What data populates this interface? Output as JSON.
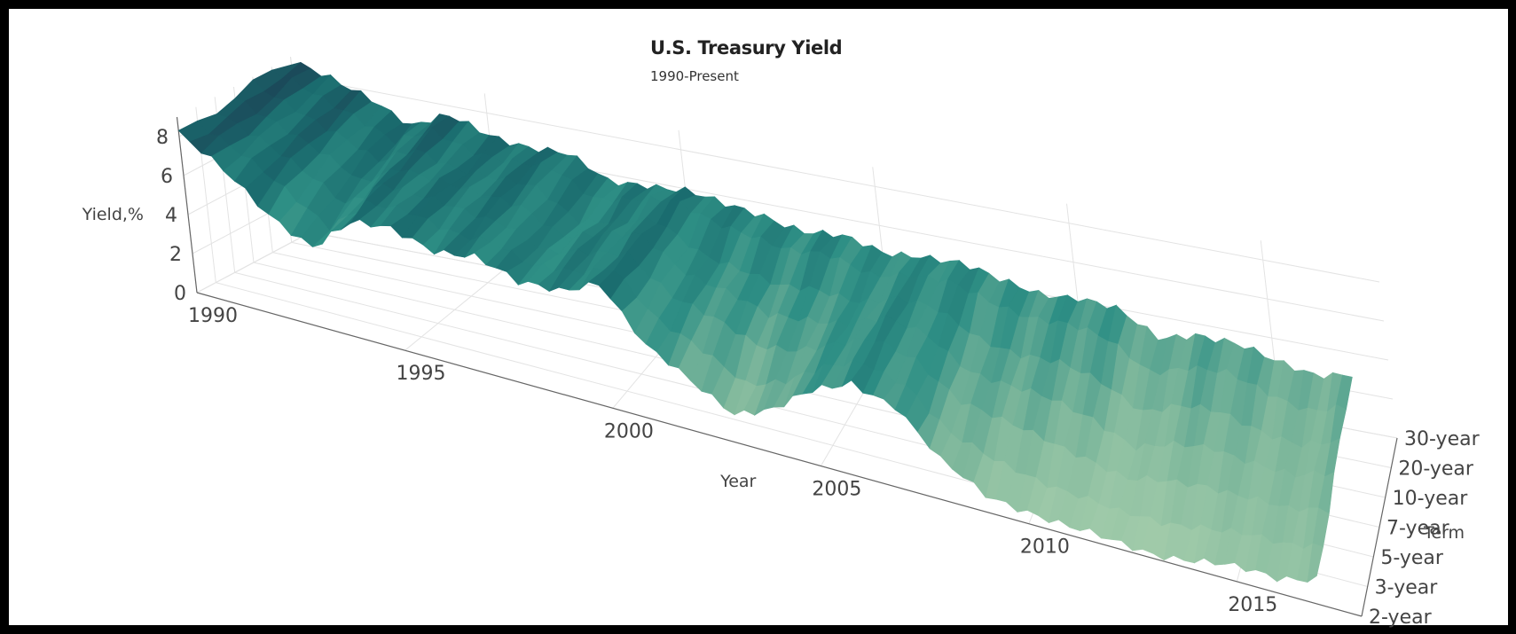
{
  "chart_data": {
    "type": "surface",
    "title": "U.S. Treasury Yield",
    "subtitle": "1990-Present",
    "xlabel": "Year",
    "ylabel": "Term",
    "zlabel": "Yield,%",
    "x_ticks": [
      "1990",
      "1995",
      "2000",
      "2005",
      "2010",
      "2015"
    ],
    "y_ticks": [
      "2-year",
      "3-year",
      "5-year",
      "7-year",
      "10-year",
      "20-year",
      "30-year"
    ],
    "z_ticks": [
      "0",
      "2",
      "4",
      "6",
      "8"
    ],
    "xlim": [
      1990,
      2018
    ],
    "zlim": [
      0,
      9
    ],
    "grid": true,
    "colorscale": [
      "#b5d6b2",
      "#7fb89c",
      "#2e8f85",
      "#1a6b6e",
      "#1b4a5a"
    ],
    "series": [
      {
        "term": "2-year",
        "x": [
          1990,
          1991,
          1992,
          1993,
          1994,
          1995,
          1996,
          1997,
          1998,
          1999,
          2000,
          2001,
          2002,
          2003,
          2004,
          2005,
          2006,
          2007,
          2008,
          2009,
          2010,
          2011,
          2012,
          2013,
          2014,
          2015,
          2016,
          2017
        ],
        "values": [
          8.2,
          6.8,
          5.2,
          4.2,
          5.9,
          6.2,
          5.8,
          6.0,
          5.2,
          5.5,
          6.5,
          3.7,
          2.6,
          1.6,
          2.3,
          3.8,
          4.9,
          4.3,
          2.0,
          0.9,
          0.7,
          0.4,
          0.3,
          0.3,
          0.5,
          0.7,
          0.8,
          1.4
        ]
      },
      {
        "term": "3-year",
        "x": [
          1990,
          1991,
          1992,
          1993,
          1994,
          1995,
          1996,
          1997,
          1998,
          1999,
          2000,
          2001,
          2002,
          2003,
          2004,
          2005,
          2006,
          2007,
          2008,
          2009,
          2010,
          2011,
          2012,
          2013,
          2014,
          2015,
          2016,
          2017
        ],
        "values": [
          8.3,
          7.1,
          5.8,
          4.6,
          6.3,
          6.3,
          6.0,
          6.1,
          5.2,
          5.5,
          6.4,
          4.1,
          3.1,
          2.1,
          2.8,
          3.9,
          4.8,
          4.3,
          2.2,
          1.4,
          1.1,
          0.8,
          0.4,
          0.5,
          0.9,
          1.0,
          1.0,
          1.6
        ]
      },
      {
        "term": "5-year",
        "x": [
          1990,
          1991,
          1992,
          1993,
          1994,
          1995,
          1996,
          1997,
          1998,
          1999,
          2000,
          2001,
          2002,
          2003,
          2004,
          2005,
          2006,
          2007,
          2008,
          2009,
          2010,
          2011,
          2012,
          2013,
          2014,
          2015,
          2016,
          2017
        ],
        "values": [
          8.4,
          7.4,
          6.2,
          5.1,
          6.7,
          6.4,
          6.2,
          6.2,
          5.2,
          5.6,
          6.2,
          4.6,
          3.8,
          3.0,
          3.4,
          4.1,
          4.8,
          4.4,
          2.8,
          2.2,
          1.9,
          1.5,
          0.8,
          1.2,
          1.6,
          1.5,
          1.3,
          1.9
        ]
      },
      {
        "term": "7-year",
        "x": [
          1990,
          1991,
          1992,
          1993,
          1994,
          1995,
          1996,
          1997,
          1998,
          1999,
          2000,
          2001,
          2002,
          2003,
          2004,
          2005,
          2006,
          2007,
          2008,
          2009,
          2010,
          2011,
          2012,
          2013,
          2014,
          2015,
          2016,
          2017
        ],
        "values": [
          8.5,
          7.7,
          6.6,
          5.5,
          6.9,
          6.6,
          6.3,
          6.3,
          5.3,
          5.7,
          6.2,
          4.9,
          4.3,
          3.5,
          3.9,
          4.2,
          4.8,
          4.5,
          3.2,
          2.8,
          2.6,
          2.2,
          1.2,
          1.7,
          2.1,
          1.9,
          1.6,
          2.2
        ]
      },
      {
        "term": "10-year",
        "x": [
          1990,
          1991,
          1992,
          1993,
          1994,
          1995,
          1996,
          1997,
          1998,
          1999,
          2000,
          2001,
          2002,
          2003,
          2004,
          2005,
          2006,
          2007,
          2008,
          2009,
          2010,
          2011,
          2012,
          2013,
          2014,
          2015,
          2016,
          2017
        ],
        "values": [
          8.6,
          7.9,
          7.0,
          5.9,
          7.1,
          6.6,
          6.4,
          6.4,
          5.3,
          5.6,
          6.0,
          5.0,
          4.6,
          4.0,
          4.3,
          4.3,
          4.8,
          4.6,
          3.7,
          3.3,
          3.2,
          2.8,
          1.8,
          2.4,
          2.5,
          2.1,
          1.8,
          2.3
        ]
      },
      {
        "term": "20-year",
        "x": [
          1990,
          1991,
          1992,
          1993,
          1994,
          1995,
          1996,
          1997,
          1998,
          1999,
          2000,
          2001,
          2002,
          2003,
          2004,
          2005,
          2006,
          2007,
          2008,
          2009,
          2010,
          2011,
          2012,
          2013,
          2014,
          2015,
          2016,
          2017
        ],
        "values": [
          8.7,
          8.1,
          7.4,
          6.3,
          7.3,
          6.8,
          6.6,
          6.6,
          5.6,
          6.0,
          6.2,
          5.6,
          5.4,
          4.9,
          5.0,
          4.6,
          5.0,
          4.9,
          4.4,
          4.1,
          4.0,
          3.6,
          2.5,
          3.1,
          3.1,
          2.6,
          2.2,
          2.6
        ]
      },
      {
        "term": "30-year",
        "x": [
          1990,
          1991,
          1992,
          1993,
          1994,
          1995,
          1996,
          1997,
          1998,
          1999,
          2000,
          2001,
          2002,
          2003,
          2004,
          2005,
          2006,
          2007,
          2008,
          2009,
          2010,
          2011,
          2012,
          2013,
          2014,
          2015,
          2016,
          2017
        ],
        "values": [
          8.7,
          8.2,
          7.7,
          6.6,
          7.4,
          6.9,
          6.7,
          6.6,
          5.6,
          5.9,
          5.9,
          5.5,
          5.4,
          5.0,
          5.0,
          4.6,
          4.9,
          4.8,
          4.3,
          4.1,
          4.2,
          3.9,
          2.9,
          3.5,
          3.3,
          2.8,
          2.6,
          2.9
        ]
      }
    ]
  }
}
